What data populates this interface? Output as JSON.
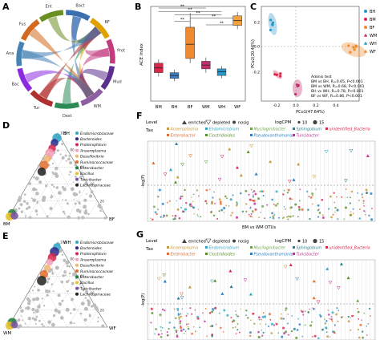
{
  "panels": {
    "A": "A",
    "B": "B",
    "C": "C",
    "D": "D",
    "E": "E",
    "F": "F",
    "G": "G"
  },
  "chord": {
    "sectors": [
      {
        "label": "Bact",
        "color": "#3a6fb0"
      },
      {
        "label": "BF",
        "color": "#e0a100"
      },
      {
        "label": "Prot",
        "color": "#c33a7e"
      },
      {
        "label": "Mud",
        "color": "#5c2f8e"
      },
      {
        "label": "WM",
        "color": "#8e5ea2"
      },
      {
        "label": "Dest",
        "color": "#2e8b57"
      },
      {
        "label": "Tur",
        "color": "#b03030"
      },
      {
        "label": "Bac",
        "color": "#8a2be2"
      },
      {
        "label": "Ana",
        "color": "#4682b4"
      },
      {
        "label": "Fus",
        "color": "#d2691e"
      },
      {
        "label": "Ent",
        "color": "#6b8e23"
      }
    ]
  },
  "boxplot": {
    "ylabel": "ACE index",
    "categories": [
      "BM",
      "BH",
      "BF",
      "WM",
      "WH",
      "WF"
    ],
    "colors": [
      "#d9274b",
      "#3b7fc4",
      "#f08a2e",
      "#c42d6a",
      "#2a97c9",
      "#f2a23a"
    ],
    "sig": [
      "**",
      "**",
      "**",
      "**",
      "**",
      "**"
    ],
    "boxes": [
      {
        "q1": 0.3,
        "med": 0.35,
        "q3": 0.4,
        "lo": 0.26,
        "hi": 0.44
      },
      {
        "q1": 0.24,
        "med": 0.27,
        "q3": 0.3,
        "lo": 0.21,
        "hi": 0.33
      },
      {
        "q1": 0.45,
        "med": 0.6,
        "q3": 0.78,
        "lo": 0.4,
        "hi": 0.93
      },
      {
        "q1": 0.34,
        "med": 0.38,
        "q3": 0.42,
        "lo": 0.3,
        "hi": 0.46
      },
      {
        "q1": 0.27,
        "med": 0.31,
        "q3": 0.34,
        "lo": 0.24,
        "hi": 0.37
      },
      {
        "q1": 0.8,
        "med": 0.85,
        "q3": 0.9,
        "lo": 0.76,
        "hi": 0.94
      }
    ]
  },
  "pcoa": {
    "xlabel": "PCo1(47.64%)",
    "ylabel": "PCo2(20.46%)",
    "xticks": [
      "-0.2",
      "0.0",
      "0.2",
      "0.4"
    ],
    "yticks": [
      "0.2",
      "0.0",
      "-0.2"
    ],
    "legend": [
      {
        "label": "BH",
        "color": "#2a97c9",
        "shape": "circle"
      },
      {
        "label": "BM",
        "color": "#d9274b",
        "shape": "circle"
      },
      {
        "label": "BF",
        "color": "#f08a2e",
        "shape": "circle"
      },
      {
        "label": "WM",
        "color": "#c42d6a",
        "shape": "triangle"
      },
      {
        "label": "WH",
        "color": "#2a97c9",
        "shape": "triangle"
      },
      {
        "label": "WF",
        "color": "#f08a2e",
        "shape": "triangle"
      }
    ],
    "adonis": [
      "Adonis test",
      "BM vs BH, R=0.65, P<0.001",
      "BM vs WM, R=0.68, P<0.001",
      "BH vs WH, R=0.78, P<0.001",
      "BF vs WF, R=0.86, P<0.001"
    ]
  },
  "ternary_D": {
    "corners": [
      "BH",
      "BM",
      "BF"
    ],
    "legend": [
      {
        "label": "Endomicrobiaceae",
        "color": "#2fa6c7"
      },
      {
        "label": "Bacteroides",
        "color": "#2b2b8a"
      },
      {
        "label": "Proteiniphilum",
        "color": "#d9274b"
      },
      {
        "label": "Anaeroplasma",
        "color": "#f3a0b7"
      },
      {
        "label": "Desulfovibrio",
        "color": "#f2b36b"
      },
      {
        "label": "Ruminococcaceae",
        "color": "#e36c2c"
      },
      {
        "label": "Enterobacter",
        "color": "#1b7f3b"
      },
      {
        "label": "Bacillus",
        "color": "#e7c325"
      },
      {
        "label": "Turicibacter",
        "color": "#7b52a6"
      },
      {
        "label": "Lachnospiraceae",
        "color": "#222222"
      }
    ],
    "ticks": [
      "100",
      "80",
      "60",
      "40",
      "20"
    ]
  },
  "ternary_E": {
    "corners": [
      "WH",
      "WM",
      "WF"
    ],
    "legend": [
      {
        "label": "Endomicrobiaceae",
        "color": "#2fa6c7"
      },
      {
        "label": "Bacteroides",
        "color": "#2b2b8a"
      },
      {
        "label": "Proteiniphilum",
        "color": "#d9274b"
      },
      {
        "label": "Anaeroplasma",
        "color": "#f3a0b7"
      },
      {
        "label": "Desulfovibrio",
        "color": "#f2b36b"
      },
      {
        "label": "Ruminococcaceae",
        "color": "#e36c2c"
      },
      {
        "label": "Enterobacter",
        "color": "#1b7f3b"
      },
      {
        "label": "Bacillus",
        "color": "#e7c325"
      },
      {
        "label": "Turicibacter",
        "color": "#7b52a6"
      },
      {
        "label": "Lachnospiraceae",
        "color": "#222222"
      }
    ],
    "ticks": [
      "100",
      "80",
      "60",
      "40",
      "20"
    ]
  },
  "manhattan_F": {
    "level_label": "Level",
    "levels": [
      "enriched",
      "depleted",
      "nosig"
    ],
    "logcpm_label": "logCPM",
    "logcpm_values": [
      "10",
      "15"
    ],
    "tax_label": "Tax",
    "taxa": [
      {
        "label": "Anaeroplasma",
        "color": "#c79a3c"
      },
      {
        "label": "Endomicrobium",
        "color": "#2fa6c7"
      },
      {
        "label": "Mucilaginibacter",
        "color": "#6fa34a"
      },
      {
        "label": "Sphingobium",
        "color": "#2b7f8a"
      },
      {
        "label": "unidentified_Bacteria",
        "color": "#d9274b"
      },
      {
        "label": "Enterobacter",
        "color": "#e36c2c"
      },
      {
        "label": "Clostridioides",
        "color": "#5a8f2a"
      },
      {
        "label": "Pseudoxanthomonas",
        "color": "#2b7fc4"
      },
      {
        "label": "Turicibacter",
        "color": "#c42d9a"
      }
    ],
    "ylabel": "-log(P)",
    "xlabel": "BM vs WM OTUs"
  },
  "manhattan_G": {
    "level_label": "Level",
    "levels": [
      "enriched",
      "depleted",
      "nosig"
    ],
    "logcpm_label": "logCPM",
    "logcpm_values": [
      "10",
      "15"
    ],
    "tax_label": "Tax",
    "taxa": [
      {
        "label": "Anaeroplasma",
        "color": "#c79a3c"
      },
      {
        "label": "Endomicrobium",
        "color": "#2fa6c7"
      },
      {
        "label": "Mucilaginibacter",
        "color": "#6fa34a"
      },
      {
        "label": "Sphingobium",
        "color": "#2b7f8a"
      },
      {
        "label": "unidentified_Bacteria",
        "color": "#d9274b"
      },
      {
        "label": "Enterobacter",
        "color": "#e36c2c"
      },
      {
        "label": "Clostridioides",
        "color": "#5a8f2a"
      },
      {
        "label": "Pseudoxanthomonas",
        "color": "#2b7fc4"
      },
      {
        "label": "Turicibacter",
        "color": "#c42d9a"
      }
    ],
    "ylabel": "-log(P)",
    "xlabel": "BH vs WH OTUs"
  }
}
